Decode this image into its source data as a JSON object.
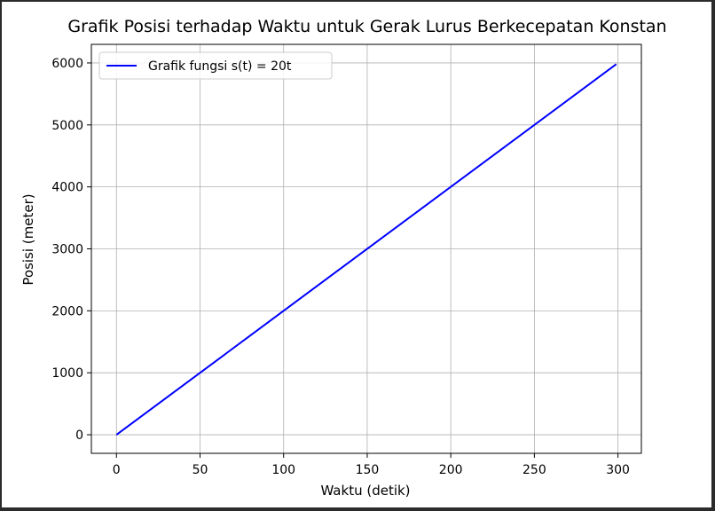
{
  "chart_data": {
    "type": "line",
    "title": "Grafik Posisi terhadap Waktu untuk Gerak Lurus Berkecepatan Konstan",
    "xlabel": "Waktu (detik)",
    "ylabel": "Posisi (meter)",
    "xlim": [
      -15,
      314
    ],
    "ylim": [
      -300,
      6300
    ],
    "xticks": [
      0,
      50,
      100,
      150,
      200,
      250,
      300
    ],
    "yticks": [
      0,
      1000,
      2000,
      3000,
      4000,
      5000,
      6000
    ],
    "grid": true,
    "legend_position": "top-left",
    "series": [
      {
        "name": "Grafik fungsi s(t) = 20t",
        "color": "#0000ff",
        "x": [
          0,
          299
        ],
        "y": [
          0,
          5980
        ]
      }
    ]
  }
}
